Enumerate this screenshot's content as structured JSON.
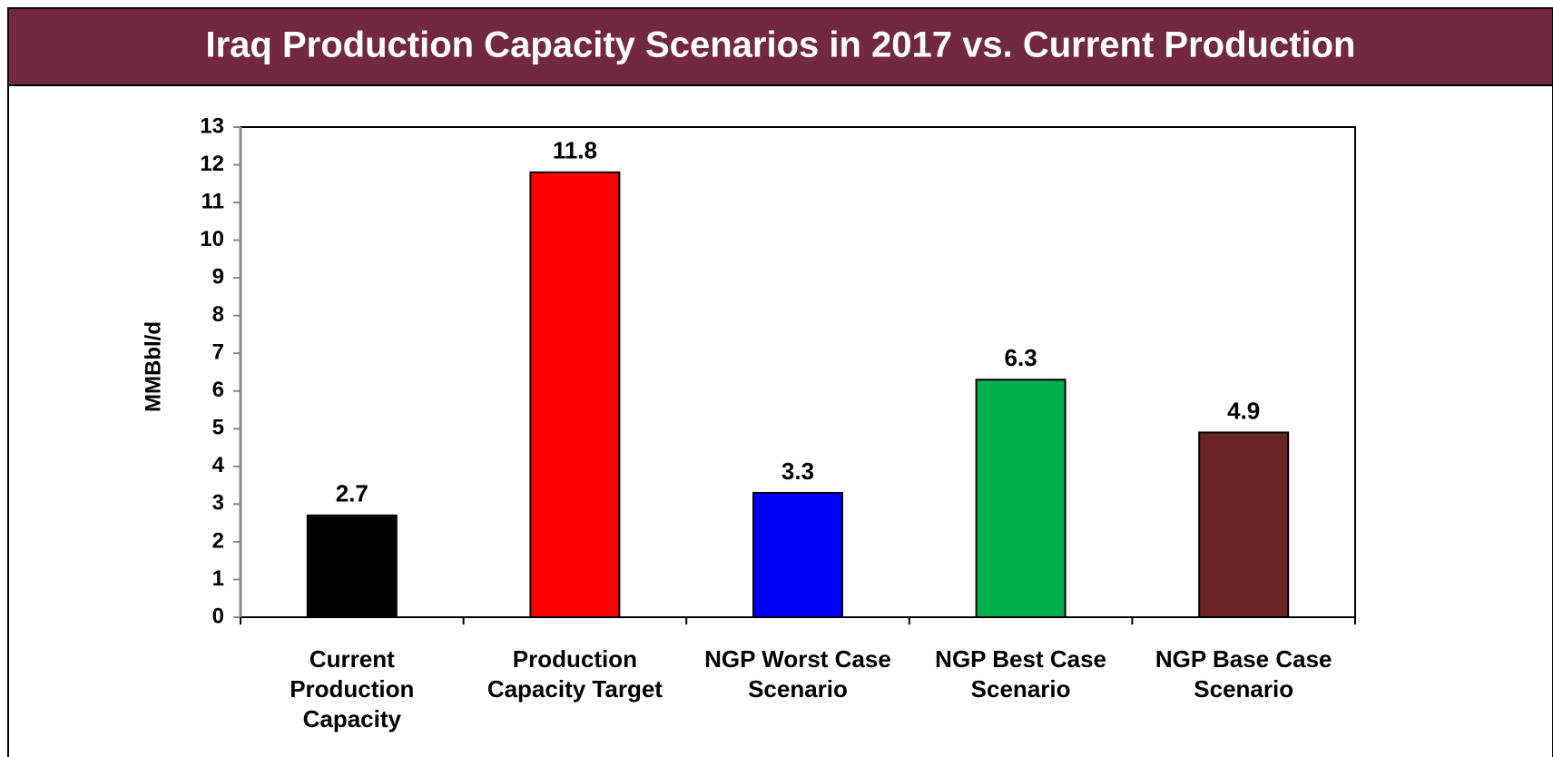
{
  "chart_data": {
    "type": "bar",
    "title": "Iraq Production Capacity Scenarios in 2017 vs. Current Production",
    "y_label": "MMBbl/d",
    "categories": [
      "Current Production Capacity",
      "Production Capacity Target",
      "NGP Worst Case Scenario",
      "NGP Best Case Scenario",
      "NGP Base Case Scenario"
    ],
    "values": [
      2.7,
      11.8,
      3.3,
      6.3,
      4.9
    ],
    "colors": [
      "#000000",
      "#ff0000",
      "#0000ff",
      "#00b050",
      "#6b2424"
    ],
    "ylim": [
      0,
      13
    ],
    "yticks": [
      0,
      1,
      2,
      3,
      4,
      5,
      6,
      7,
      8,
      9,
      10,
      11,
      12,
      13
    ],
    "grid": false
  }
}
